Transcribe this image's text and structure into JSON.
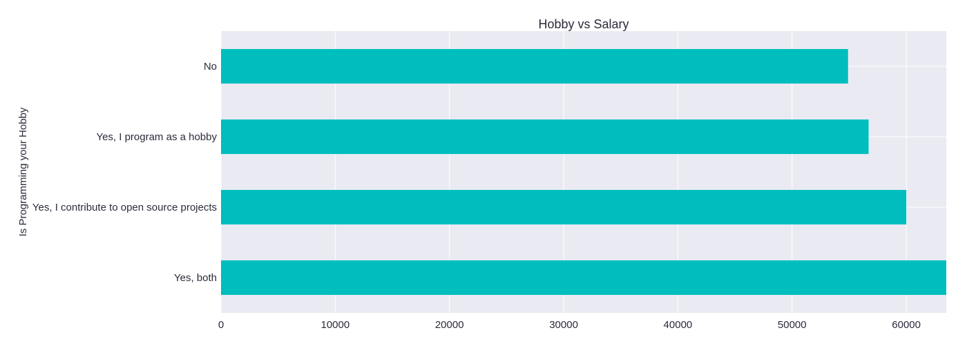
{
  "chart_data": {
    "type": "bar",
    "orientation": "horizontal",
    "title": "Hobby vs Salary",
    "xlabel": "",
    "ylabel": "Is Programming your Hobby",
    "categories": [
      "No",
      "Yes, I program as a hobby",
      "Yes, I contribute to open source projects",
      "Yes, both"
    ],
    "values": [
      54900,
      56700,
      60000,
      63500
    ],
    "xlim": [
      0,
      63500
    ],
    "xticks": [
      "0",
      "10000",
      "20000",
      "30000",
      "40000",
      "50000",
      "60000"
    ],
    "grid": true,
    "colors": {
      "bar": "#00bebe",
      "plot_background": "#eaeaf2",
      "grid": "#ffffff"
    }
  }
}
